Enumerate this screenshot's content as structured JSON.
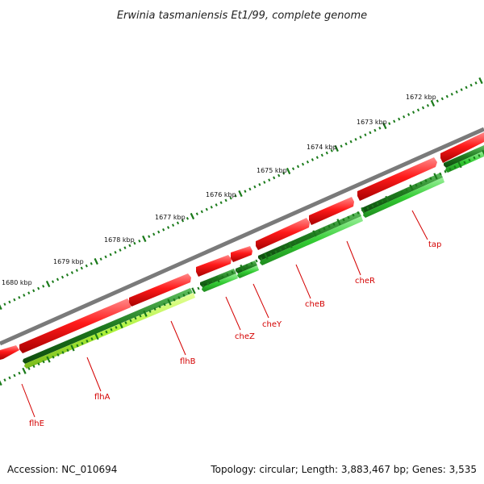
{
  "title": "Erwinia tasmaniensis Et1/99, complete genome",
  "accession": "Accession: NC_010694",
  "summary": "Topology: circular; Length: 3,883,467 bp; Genes: 3,535",
  "scale_labels": [
    "1672 kbp",
    "1673 kbp",
    "1674 kbp",
    "1675 kbp",
    "1676 kbp",
    "1677 kbp",
    "1678 kbp",
    "1679 kbp",
    "1680 kbp"
  ],
  "genes": [
    "tap",
    "cheR",
    "cheB",
    "cheY",
    "cheZ",
    "flhB",
    "flhA",
    "flhE"
  ],
  "colors": {
    "backbone": "#7a7a7a",
    "forward_gene": "#ee1111",
    "dark_green": "#1f7a1f",
    "light_green": "#33cc33",
    "yellow_green": "#aef23a",
    "label_red": "#d40000",
    "tick_green": "#1a7a1a"
  }
}
